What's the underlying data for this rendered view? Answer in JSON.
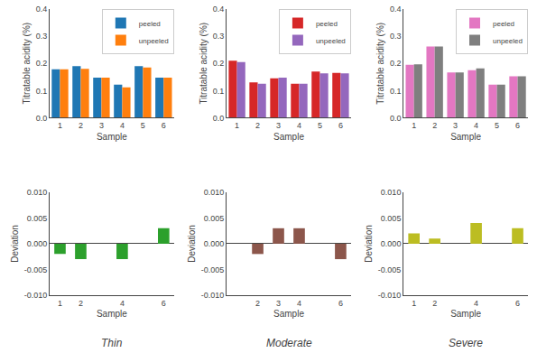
{
  "chart_data": [
    {
      "type": "bar",
      "xlabel": "Sample",
      "ylabel": "Titratable acidity (%)",
      "categories": [
        1,
        2,
        3,
        4,
        5,
        6
      ],
      "series": [
        {
          "name": "peeled",
          "values": [
            0.178,
            0.19,
            0.148,
            0.122,
            0.19,
            0.148
          ]
        },
        {
          "name": "unpeeled",
          "values": [
            0.178,
            0.18,
            0.148,
            0.112,
            0.185,
            0.148
          ]
        }
      ],
      "ylim": [
        0.0,
        0.4
      ],
      "yticks": [
        {
          "value": 0.0,
          "label": "0.0"
        },
        0.1,
        0.2,
        0.3,
        0.4
      ],
      "legend": "upper right",
      "grid": false
    },
    {
      "type": "bar",
      "title": "Thin",
      "xlabel": "Sample",
      "ylabel": "Deviation",
      "categories": [
        1,
        2,
        null,
        4,
        null,
        6
      ],
      "values": [
        -0.002,
        -0.003,
        null,
        -0.003,
        null,
        0.003
      ],
      "ylim": [
        -0.01,
        0.01
      ],
      "yticks": [
        {
          "value": -0.01,
          "label": "-0.010"
        },
        {
          "value": -0.005,
          "label": "-0.005"
        },
        {
          "value": 0.0,
          "label": "0.000"
        },
        {
          "value": 0.005,
          "label": "0.005"
        },
        {
          "value": 0.01,
          "label": "0.010"
        }
      ],
      "grid": false
    },
    {
      "type": "bar",
      "xlabel": "Sample",
      "ylabel": "Titratable acidity (%)",
      "categories": [
        1,
        2,
        3,
        4,
        5,
        6
      ],
      "series": [
        {
          "name": "peeled",
          "values": [
            0.21,
            0.13,
            0.145,
            0.125,
            0.17,
            0.165
          ]
        },
        {
          "name": "unpeeled",
          "values": [
            0.205,
            0.125,
            0.148,
            0.125,
            0.163,
            0.163
          ]
        }
      ],
      "ylim": [
        0.0,
        0.4
      ],
      "yticks": [
        {
          "value": 0.0,
          "label": "0.0"
        },
        0.1,
        0.2,
        0.3,
        0.4
      ],
      "legend": "upper right",
      "grid": false
    },
    {
      "type": "bar",
      "title": "Moderate",
      "xlabel": "Sample",
      "ylabel": "Deviation",
      "categories": [
        null,
        2,
        3,
        4,
        null,
        6
      ],
      "values": [
        null,
        -0.002,
        0.003,
        0.003,
        null,
        -0.003
      ],
      "ylim": [
        -0.01,
        0.01
      ],
      "yticks": [
        {
          "value": -0.01,
          "label": "-0.010"
        },
        {
          "value": -0.005,
          "label": "-0.005"
        },
        {
          "value": 0.0,
          "label": "0.000"
        },
        {
          "value": 0.005,
          "label": "0.005"
        },
        {
          "value": 0.01,
          "label": "0.010"
        }
      ],
      "grid": false
    },
    {
      "type": "bar",
      "xlabel": "Sample",
      "ylabel": "Titratable acidity (%)",
      "categories": [
        1,
        2,
        3,
        4,
        5,
        6
      ],
      "series": [
        {
          "name": "peeled",
          "values": [
            0.195,
            0.262,
            0.167,
            0.175,
            0.122,
            0.153
          ]
        },
        {
          "name": "unpeeled",
          "values": [
            0.197,
            0.262,
            0.167,
            0.182,
            0.122,
            0.153
          ]
        }
      ],
      "ylim": [
        0.0,
        0.4
      ],
      "yticks": [
        {
          "value": 0.0,
          "label": "0.0"
        },
        0.1,
        0.2,
        0.3,
        0.4
      ],
      "legend": "upper right",
      "grid": false
    },
    {
      "type": "bar",
      "title": "Severe",
      "xlabel": "Sample",
      "ylabel": "Deviation",
      "categories": [
        1,
        2,
        null,
        4,
        null,
        6
      ],
      "values": [
        0.002,
        0.001,
        null,
        0.004,
        null,
        0.003
      ],
      "ylim": [
        -0.01,
        0.01
      ],
      "yticks": [
        {
          "value": -0.01,
          "label": "-0.010"
        },
        {
          "value": -0.005,
          "label": "-0.005"
        },
        {
          "value": 0.0,
          "label": "0.000"
        },
        {
          "value": 0.005,
          "label": "0.005"
        },
        {
          "value": 0.01,
          "label": "0.010"
        }
      ],
      "grid": false
    }
  ]
}
